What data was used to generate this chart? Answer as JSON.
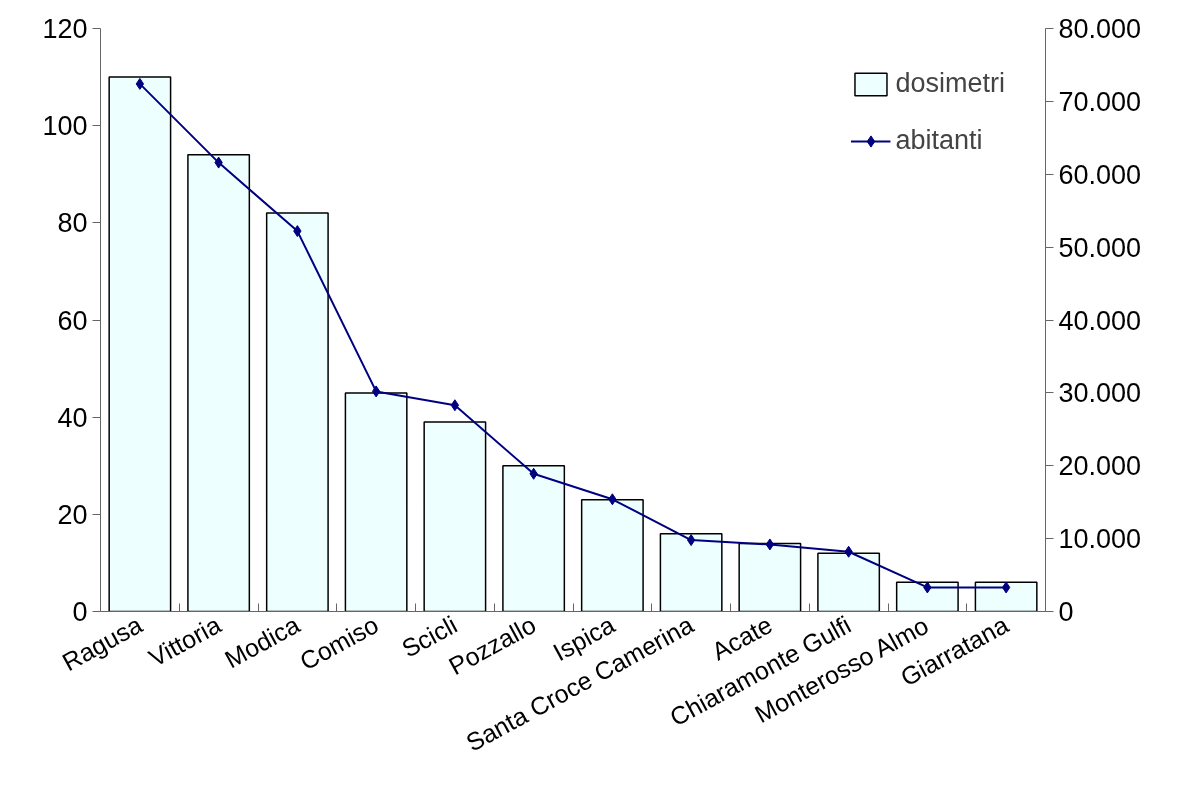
{
  "chart_data": {
    "type": "bar",
    "categories": [
      "Ragusa",
      "Vittoria",
      "Modica",
      "Comiso",
      "Scicli",
      "Pozzallo",
      "Ispica",
      "Santa Croce Camerina",
      "Acate",
      "Chiaramonte Gulfi",
      "Monterosso Almo",
      "Giarratana"
    ],
    "series": [
      {
        "name": "dosimetri",
        "color": "#eeffff",
        "values": [
          110,
          94,
          82,
          45,
          39,
          30,
          23,
          16,
          14,
          12,
          6,
          6
        ]
      },
      {
        "name": "abitanti",
        "type": "line",
        "axis": "y2",
        "color": "#000080",
        "marker": "diamond",
        "values": [
          72400,
          61600,
          52200,
          30200,
          28300,
          18900,
          15400,
          9800,
          9200,
          8200,
          3300,
          3300
        ]
      }
    ],
    "ylim": [
      0,
      120
    ],
    "yticks": [
      0,
      20,
      40,
      60,
      80,
      100,
      120
    ],
    "y2lim": [
      0,
      80000
    ],
    "y2ticks": [
      0,
      {
        "value": 10000,
        "label": "10.000"
      },
      {
        "value": 20000,
        "label": "20.000"
      },
      {
        "value": 30000,
        "label": "30.000"
      },
      {
        "value": 40000,
        "label": "40.000"
      },
      {
        "value": 50000,
        "label": "50.000"
      },
      {
        "value": 60000,
        "label": "60.000"
      },
      {
        "value": 70000,
        "label": "70.000"
      },
      {
        "value": 80000,
        "label": "80.000"
      }
    ],
    "grid": false,
    "legend": "top right"
  }
}
